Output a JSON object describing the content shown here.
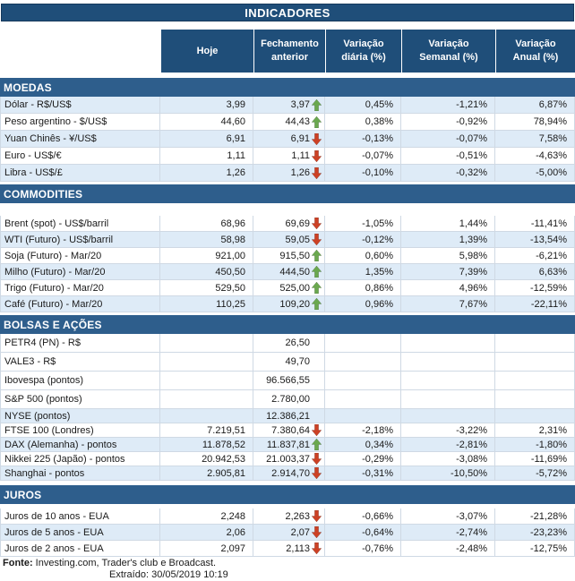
{
  "title": "INDICADORES",
  "columns": [
    "Hoje",
    "Fechamento anterior",
    "Variação diária (%)",
    "Variação Semanal (%)",
    "Variação Anual (%)"
  ],
  "colors": {
    "header_bg": "#1F4E79",
    "section_bg": "#2E5E8C",
    "row_alt_bg": "#DEEBF7",
    "grid_line": "#CFD9E4",
    "arrow_up": "#6AA84F",
    "arrow_down": "#CC4125"
  },
  "sections": [
    {
      "name": "MOEDAS",
      "spacer_after_header": 0,
      "gap_before": 6,
      "row_height_class": "h19",
      "rows": [
        {
          "label": "Dólar - R$/US$",
          "hoje": "3,99",
          "prev": "3,97",
          "trend": "up",
          "daily": "0,45%",
          "weekly": "-1,21%",
          "annual": "6,87%",
          "shaded": true
        },
        {
          "label": "Peso argentino - $/US$",
          "hoje": "44,60",
          "prev": "44,43",
          "trend": "up",
          "daily": "0,38%",
          "weekly": "-0,92%",
          "annual": "78,94%",
          "shaded": false
        },
        {
          "label": "Yuan Chinês - ¥/US$",
          "hoje": "6,91",
          "prev": "6,91",
          "trend": "down",
          "daily": "-0,13%",
          "weekly": "-0,07%",
          "annual": "7,58%",
          "shaded": true
        },
        {
          "label": "Euro - US$/€",
          "hoje": "1,11",
          "prev": "1,11",
          "trend": "down",
          "daily": "-0,07%",
          "weekly": "-0,51%",
          "annual": "-4,63%",
          "shaded": false
        },
        {
          "label": "Libra - US$/£",
          "hoje": "1,26",
          "prev": "1,26",
          "trend": "down",
          "daily": "-0,10%",
          "weekly": "-0,32%",
          "annual": "-5,00%",
          "shaded": true
        }
      ]
    },
    {
      "name": "COMMODITIES",
      "spacer_after_header": 14,
      "gap_before": 3,
      "row_height_class": "",
      "rows": [
        {
          "label": "Brent (spot) - US$/barril",
          "hoje": "68,96",
          "prev": "69,69",
          "trend": "down",
          "daily": "-1,05%",
          "weekly": "1,44%",
          "annual": "-11,41%",
          "shaded": false
        },
        {
          "label": "WTI (Futuro) - US$/barril",
          "hoje": "58,98",
          "prev": "59,05",
          "trend": "down",
          "daily": "-0,12%",
          "weekly": "1,39%",
          "annual": "-13,54%",
          "shaded": true
        },
        {
          "label": "Soja (Futuro) - Mar/20",
          "hoje": "921,00",
          "prev": "915,50",
          "trend": "up",
          "daily": "0,60%",
          "weekly": "5,98%",
          "annual": "-6,21%",
          "shaded": false
        },
        {
          "label": "Milho (Futuro) - Mar/20",
          "hoje": "450,50",
          "prev": "444,50",
          "trend": "up",
          "daily": "1,35%",
          "weekly": "7,39%",
          "annual": "6,63%",
          "shaded": true
        },
        {
          "label": "Trigo (Futuro) - Mar/20",
          "hoje": "529,50",
          "prev": "525,00",
          "trend": "up",
          "daily": "0,86%",
          "weekly": "4,96%",
          "annual": "-12,59%",
          "shaded": false
        },
        {
          "label": "Café (Futuro) - Mar/20",
          "hoje": "110,25",
          "prev": "109,20",
          "trend": "up",
          "daily": "0,96%",
          "weekly": "7,67%",
          "annual": "-22,11%",
          "shaded": true
        }
      ]
    },
    {
      "name": "BOLSAS E AÇÕES",
      "spacer_after_header": 0,
      "gap_before": 3,
      "row_height_class": "h16",
      "rows": [
        {
          "label": "PETR4 (PN) - R$",
          "hoje": "",
          "prev": "26,50",
          "trend": "",
          "daily": "",
          "weekly": "",
          "annual": "",
          "shaded": false,
          "tall": true
        },
        {
          "label": "VALE3 - R$",
          "hoje": "",
          "prev": "49,70",
          "trend": "",
          "daily": "",
          "weekly": "",
          "annual": "",
          "shaded": false,
          "tall": true
        },
        {
          "label": "Ibovespa (pontos)",
          "hoje": "",
          "prev": "96.566,55",
          "trend": "",
          "daily": "",
          "weekly": "",
          "annual": "",
          "shaded": false,
          "tall": true
        },
        {
          "label": "S&P 500 (pontos)",
          "hoje": "",
          "prev": "2.780,00",
          "trend": "",
          "daily": "",
          "weekly": "",
          "annual": "",
          "shaded": false,
          "tall": true
        },
        {
          "label": "NYSE (pontos)",
          "hoje": "",
          "prev": "12.386,21",
          "trend": "",
          "daily": "",
          "weekly": "",
          "annual": "",
          "shaded": true
        },
        {
          "label": "FTSE 100 (Londres)",
          "hoje": "7.219,51",
          "prev": "7.380,64",
          "trend": "down",
          "daily": "-2,18%",
          "weekly": "-3,22%",
          "annual": "2,31%",
          "shaded": false
        },
        {
          "label": "DAX (Alemanha) - pontos",
          "hoje": "11.878,52",
          "prev": "11.837,81",
          "trend": "up",
          "daily": "0,34%",
          "weekly": "-2,81%",
          "annual": "-1,80%",
          "shaded": true
        },
        {
          "label": "Nikkei 225 (Japão) - pontos",
          "hoje": "20.942,53",
          "prev": "21.003,37",
          "trend": "down",
          "daily": "-0,29%",
          "weekly": "-3,08%",
          "annual": "-11,69%",
          "shaded": false
        },
        {
          "label": "Shanghai - pontos",
          "hoje": "2.905,81",
          "prev": "2.914,70",
          "trend": "down",
          "daily": "-0,31%",
          "weekly": "-10,50%",
          "annual": "-5,72%",
          "shaded": true
        }
      ]
    },
    {
      "name": "JUROS",
      "spacer_after_header": 5,
      "gap_before": 5,
      "row_height_class": "",
      "rows": [
        {
          "label": "Juros de 10 anos - EUA",
          "hoje": "2,248",
          "prev": "2,263",
          "trend": "down",
          "daily": "-0,66%",
          "weekly": "-3,07%",
          "annual": "-21,28%",
          "shaded": false
        },
        {
          "label": "Juros de 5 anos - EUA",
          "hoje": "2,06",
          "prev": "2,07",
          "trend": "down",
          "daily": "-0,64%",
          "weekly": "-2,74%",
          "annual": "-23,23%",
          "shaded": true
        },
        {
          "label": "Juros de 2 anos - EUA",
          "hoje": "2,097",
          "prev": "2,113",
          "trend": "down",
          "daily": "-0,76%",
          "weekly": "-2,48%",
          "annual": "-12,75%",
          "shaded": false
        }
      ]
    }
  ],
  "footer": {
    "fonte_label": "Fonte:",
    "fonte_text": " Investing.com, Trader's club e Broadcast.",
    "extraido": "Extraído: 30/05/2019 10:19"
  }
}
